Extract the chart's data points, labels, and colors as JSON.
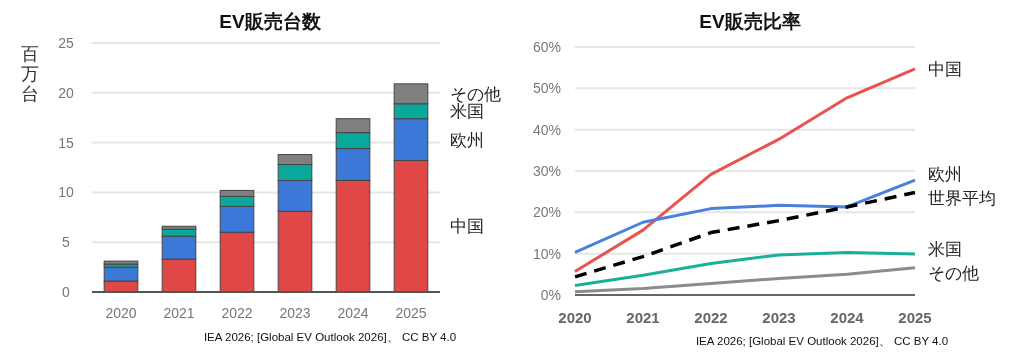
{
  "chart_data": [
    {
      "type": "bar",
      "title": "EV販売台数",
      "ylabel": "百万台",
      "stacked": true,
      "categories": [
        "2020",
        "2021",
        "2022",
        "2023",
        "2024",
        "2025"
      ],
      "series": [
        {
          "name": "中国",
          "color": "#e04848",
          "values": [
            1.1,
            3.3,
            6.0,
            8.1,
            11.2,
            13.2
          ]
        },
        {
          "name": "欧州",
          "color": "#3c78d8",
          "values": [
            1.4,
            2.3,
            2.6,
            3.1,
            3.2,
            4.2
          ]
        },
        {
          "name": "米国",
          "color": "#0aa89a",
          "values": [
            0.3,
            0.7,
            1.0,
            1.6,
            1.6,
            1.5
          ]
        },
        {
          "name": "その他",
          "color": "#808080",
          "values": [
            0.3,
            0.3,
            0.6,
            1.0,
            1.4,
            2.0
          ]
        }
      ],
      "ylim": [
        0,
        25
      ],
      "yticks": [
        0,
        5,
        10,
        15,
        20,
        25
      ],
      "grid": "y",
      "legend": false,
      "annotations": [
        "IEA 2026; [Global EV Outlook 2026]、 CC BY 4.0"
      ]
    },
    {
      "type": "line",
      "title": "EV販売比率",
      "x": [
        2020,
        2021,
        2022,
        2023,
        2024,
        2025
      ],
      "series": [
        {
          "name": "中国",
          "color": "#e8524f",
          "values": [
            5.7,
            15.7,
            29.2,
            37.7,
            47.7,
            54.7
          ]
        },
        {
          "name": "欧州",
          "color": "#4a7fdc",
          "values": [
            10.3,
            17.6,
            20.9,
            21.7,
            21.3,
            27.8
          ]
        },
        {
          "name": "世界平均",
          "color": "#000000",
          "line_style": "dashed",
          "values": [
            4.4,
            9.3,
            15.1,
            18.0,
            21.3,
            24.8
          ]
        },
        {
          "name": "米国",
          "color": "#19b09a",
          "values": [
            2.3,
            4.8,
            7.6,
            9.7,
            10.3,
            9.9
          ]
        },
        {
          "name": "その他",
          "color": "#8c8c8c",
          "values": [
            0.8,
            1.6,
            2.8,
            4.0,
            5.0,
            6.6
          ]
        }
      ],
      "xlim": [
        2020,
        2025
      ],
      "xticks": [
        2020,
        2021,
        2022,
        2023,
        2024,
        2025
      ],
      "ylim": [
        0,
        60
      ],
      "yticks": [
        {
          "value": 0,
          "label": "0%"
        },
        {
          "value": 10,
          "label": "10%"
        },
        {
          "value": 20,
          "label": "20%"
        },
        {
          "value": 30,
          "label": "30%"
        },
        {
          "value": 40,
          "label": "40%"
        },
        {
          "value": 50,
          "label": "50%"
        },
        {
          "value": 60,
          "label": "60%"
        }
      ],
      "grid": "y",
      "legend": false,
      "marker": "none",
      "line_style": "solid",
      "annotations": [
        "IEA 2026; [Global EV Outlook 2026]、 CC BY 4.0"
      ]
    }
  ]
}
